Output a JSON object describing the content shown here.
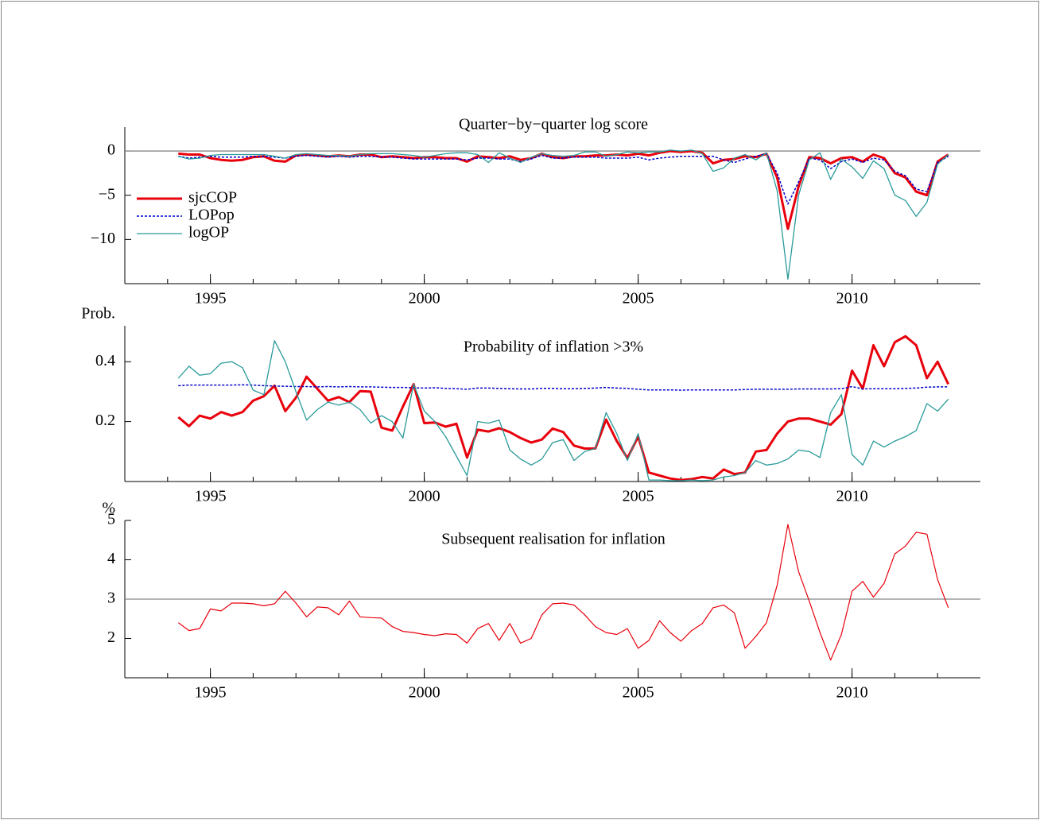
{
  "chart_data": [
    {
      "type": "line",
      "title": "Quarter−by−quarter log score",
      "xlim": [
        1993,
        2013
      ],
      "xticks": [
        1995,
        2000,
        2005,
        2010
      ],
      "xminorticks": [
        1994,
        1995,
        1996,
        1997,
        1998,
        1999,
        2000,
        2001,
        2002,
        2003,
        2004,
        2005,
        2006,
        2007,
        2008,
        2009,
        2010,
        2011,
        2012
      ],
      "ylim": [
        -15,
        2.7
      ],
      "yticks": [
        0,
        {
          "value": -5,
          "label": "−5"
        },
        {
          "value": -10,
          "label": "−10"
        }
      ],
      "hline": 0,
      "legend": "upper left",
      "x": [
        1994.25,
        1994.5,
        1994.75,
        1995,
        1995.25,
        1995.5,
        1995.75,
        1996,
        1996.25,
        1996.5,
        1996.75,
        1997,
        1997.25,
        1997.5,
        1997.75,
        1998,
        1998.25,
        1998.5,
        1998.75,
        1999,
        1999.25,
        1999.5,
        1999.75,
        2000,
        2000.25,
        2000.5,
        2000.75,
        2001,
        2001.25,
        2001.5,
        2001.75,
        2002,
        2002.25,
        2002.5,
        2002.75,
        2003,
        2003.25,
        2003.5,
        2003.75,
        2004,
        2004.25,
        2004.5,
        2004.75,
        2005,
        2005.25,
        2005.5,
        2005.75,
        2006,
        2006.25,
        2006.5,
        2006.75,
        2007,
        2007.25,
        2007.5,
        2007.75,
        2008,
        2008.25,
        2008.5,
        2008.75,
        2009,
        2009.25,
        2009.5,
        2009.75,
        2010,
        2010.25,
        2010.5,
        2010.75,
        2011,
        2011.25,
        2011.5,
        2011.75,
        2012,
        2012.25
      ],
      "series": [
        {
          "name": "sjcCOP",
          "color": "#e8000b",
          "width": 3,
          "dash": "none",
          "values": [
            -0.3,
            -0.4,
            -0.4,
            -0.8,
            -1.0,
            -1.1,
            -1.0,
            -0.7,
            -0.6,
            -1.1,
            -1.2,
            -0.5,
            -0.4,
            -0.5,
            -0.6,
            -0.5,
            -0.6,
            -0.4,
            -0.4,
            -0.7,
            -0.6,
            -0.7,
            -0.8,
            -0.7,
            -0.7,
            -0.8,
            -0.8,
            -1.2,
            -0.6,
            -0.7,
            -0.8,
            -0.6,
            -1.0,
            -0.8,
            -0.3,
            -0.7,
            -0.8,
            -0.6,
            -0.6,
            -0.5,
            -0.5,
            -0.4,
            -0.5,
            -0.3,
            -0.5,
            -0.2,
            0.0,
            -0.1,
            0.0,
            -0.2,
            -1.4,
            -1.0,
            -0.9,
            -0.6,
            -0.7,
            -0.3,
            -3.0,
            -8.8,
            -4.0,
            -0.7,
            -0.8,
            -1.4,
            -0.8,
            -0.7,
            -1.2,
            -0.4,
            -0.8,
            -2.5,
            -3.0,
            -4.6,
            -5.0,
            -1.2,
            -0.4
          ]
        },
        {
          "name": "LOPop",
          "color": "#0000cc",
          "width": 1.5,
          "dash": "3 2",
          "values": [
            -0.6,
            -0.8,
            -0.7,
            -0.6,
            -0.7,
            -0.7,
            -0.7,
            -0.6,
            -0.6,
            -0.7,
            -0.8,
            -0.6,
            -0.5,
            -0.6,
            -0.7,
            -0.6,
            -0.7,
            -0.6,
            -0.6,
            -0.7,
            -0.7,
            -0.8,
            -0.9,
            -0.9,
            -0.9,
            -0.9,
            -0.9,
            -1.0,
            -0.8,
            -0.8,
            -0.9,
            -0.9,
            -1.2,
            -0.9,
            -0.5,
            -0.8,
            -0.8,
            -0.7,
            -0.7,
            -0.7,
            -0.8,
            -0.8,
            -0.8,
            -0.7,
            -1.0,
            -0.8,
            -0.7,
            -0.6,
            -0.6,
            -0.6,
            -0.6,
            -1.0,
            -1.3,
            -0.9,
            -0.6,
            -0.3,
            -2.5,
            -6.0,
            -3.5,
            -0.8,
            -1.0,
            -2.0,
            -1.2,
            -0.9,
            -1.3,
            -0.8,
            -1.0,
            -2.3,
            -2.8,
            -4.3,
            -4.6,
            -1.3,
            -0.6
          ]
        },
        {
          "name": "logOP",
          "color": "#2a9a9a",
          "width": 1.3,
          "dash": "none",
          "values": [
            -0.6,
            -0.9,
            -0.8,
            -0.5,
            -0.4,
            -0.4,
            -0.4,
            -0.4,
            -0.4,
            -0.6,
            -0.8,
            -0.4,
            -0.3,
            -0.4,
            -0.5,
            -0.5,
            -0.6,
            -0.4,
            -0.3,
            -0.3,
            -0.3,
            -0.4,
            -0.5,
            -0.7,
            -0.5,
            -0.3,
            -0.2,
            -0.2,
            -0.4,
            -1.3,
            -0.2,
            -0.8,
            -1.3,
            -0.7,
            -0.3,
            -0.5,
            -0.6,
            -0.5,
            -0.1,
            -0.1,
            -0.6,
            -0.4,
            -0.1,
            -0.2,
            -0.1,
            -0.1,
            0.1,
            0.0,
            0.1,
            -0.3,
            -2.3,
            -1.9,
            -0.8,
            -0.4,
            -1.0,
            -0.2,
            -4.5,
            -14.5,
            -5.0,
            -1.0,
            -0.2,
            -3.2,
            -0.9,
            -1.8,
            -3.1,
            -1.1,
            -2.0,
            -5.0,
            -5.6,
            -7.4,
            -5.8,
            -1.5,
            -0.4
          ]
        }
      ]
    },
    {
      "type": "line",
      "title": "Probability of inflation >3%",
      "ylabel": "Prob.",
      "xlim": [
        1993,
        2013
      ],
      "xticks": [
        1995,
        2000,
        2005,
        2010
      ],
      "xminorticks": [
        1994,
        1995,
        1996,
        1997,
        1998,
        1999,
        2000,
        2001,
        2002,
        2003,
        2004,
        2005,
        2006,
        2007,
        2008,
        2009,
        2010,
        2011,
        2012
      ],
      "ylim": [
        0,
        0.52
      ],
      "yticks": [
        0.2,
        0.4
      ],
      "x": [
        1994.25,
        1994.5,
        1994.75,
        1995,
        1995.25,
        1995.5,
        1995.75,
        1996,
        1996.25,
        1996.5,
        1996.75,
        1997,
        1997.25,
        1997.5,
        1997.75,
        1998,
        1998.25,
        1998.5,
        1998.75,
        1999,
        1999.25,
        1999.5,
        1999.75,
        2000,
        2000.25,
        2000.5,
        2000.75,
        2001,
        2001.25,
        2001.5,
        2001.75,
        2002,
        2002.25,
        2002.5,
        2002.75,
        2003,
        2003.25,
        2003.5,
        2003.75,
        2004,
        2004.25,
        2004.5,
        2004.75,
        2005,
        2005.25,
        2005.5,
        2005.75,
        2006,
        2006.25,
        2006.5,
        2006.75,
        2007,
        2007.25,
        2007.5,
        2007.75,
        2008,
        2008.25,
        2008.5,
        2008.75,
        2009,
        2009.25,
        2009.5,
        2009.75,
        2010,
        2010.25,
        2010.5,
        2010.75,
        2011,
        2011.25,
        2011.5,
        2011.75,
        2012,
        2012.25
      ],
      "series": [
        {
          "name": "sjcCOP",
          "color": "#e8000b",
          "width": 3,
          "dash": "none",
          "values": [
            0.215,
            0.185,
            0.22,
            0.21,
            0.232,
            0.22,
            0.232,
            0.27,
            0.285,
            0.32,
            0.235,
            0.28,
            0.35,
            0.31,
            0.27,
            0.282,
            0.265,
            0.302,
            0.3,
            0.18,
            0.17,
            0.25,
            0.325,
            0.195,
            0.197,
            0.183,
            0.193,
            0.08,
            0.173,
            0.167,
            0.178,
            0.165,
            0.145,
            0.13,
            0.14,
            0.177,
            0.165,
            0.12,
            0.11,
            0.11,
            0.207,
            0.135,
            0.078,
            0.15,
            0.03,
            0.02,
            0.01,
            0.005,
            0.008,
            0.015,
            0.01,
            0.04,
            0.025,
            0.03,
            0.1,
            0.105,
            0.16,
            0.2,
            0.21,
            0.21,
            0.2,
            0.19,
            0.225,
            0.37,
            0.31,
            0.455,
            0.385,
            0.465,
            0.485,
            0.455,
            0.345,
            0.4,
            0.325
          ]
        },
        {
          "name": "LOPop",
          "color": "#0000cc",
          "width": 1.5,
          "dash": "3 2",
          "values": [
            0.32,
            0.322,
            0.322,
            0.322,
            0.322,
            0.322,
            0.323,
            0.322,
            0.32,
            0.319,
            0.318,
            0.317,
            0.317,
            0.316,
            0.317,
            0.316,
            0.317,
            0.316,
            0.316,
            0.315,
            0.314,
            0.314,
            0.313,
            0.312,
            0.313,
            0.311,
            0.31,
            0.308,
            0.312,
            0.312,
            0.311,
            0.31,
            0.309,
            0.309,
            0.311,
            0.311,
            0.31,
            0.31,
            0.311,
            0.312,
            0.314,
            0.312,
            0.311,
            0.308,
            0.306,
            0.306,
            0.306,
            0.305,
            0.306,
            0.306,
            0.306,
            0.306,
            0.306,
            0.307,
            0.308,
            0.308,
            0.308,
            0.308,
            0.309,
            0.309,
            0.309,
            0.309,
            0.31,
            0.317,
            0.309,
            0.31,
            0.31,
            0.31,
            0.311,
            0.312,
            0.315,
            0.316,
            0.316
          ]
        },
        {
          "name": "logOP",
          "color": "#2a9a9a",
          "width": 1.3,
          "dash": "none",
          "values": [
            0.345,
            0.385,
            0.355,
            0.36,
            0.395,
            0.4,
            0.38,
            0.305,
            0.29,
            0.47,
            0.4,
            0.3,
            0.205,
            0.24,
            0.265,
            0.255,
            0.265,
            0.24,
            0.195,
            0.22,
            0.2,
            0.145,
            0.325,
            0.235,
            0.2,
            0.15,
            0.085,
            0.02,
            0.2,
            0.195,
            0.205,
            0.105,
            0.075,
            0.055,
            0.075,
            0.13,
            0.14,
            0.07,
            0.1,
            0.11,
            0.23,
            0.16,
            0.07,
            0.16,
            0.005,
            0.005,
            0.003,
            0.003,
            0.005,
            0.003,
            0.005,
            0.015,
            0.02,
            0.03,
            0.07,
            0.055,
            0.06,
            0.075,
            0.105,
            0.1,
            0.08,
            0.23,
            0.29,
            0.09,
            0.055,
            0.135,
            0.115,
            0.135,
            0.15,
            0.17,
            0.26,
            0.235,
            0.275
          ]
        }
      ]
    },
    {
      "type": "line",
      "title": "Subsequent realisation for inflation",
      "ylabel": "%",
      "xlim": [
        1993,
        2013
      ],
      "xticks": [
        1995,
        2000,
        2005,
        2010
      ],
      "xminorticks": [
        1994,
        1995,
        1996,
        1997,
        1998,
        1999,
        2000,
        2001,
        2002,
        2003,
        2004,
        2005,
        2006,
        2007,
        2008,
        2009,
        2010,
        2011,
        2012
      ],
      "ylim": [
        1,
        5
      ],
      "yticks": [
        2,
        3,
        4,
        5
      ],
      "hline": 3,
      "x": [
        1994.25,
        1994.5,
        1994.75,
        1995,
        1995.25,
        1995.5,
        1995.75,
        1996,
        1996.25,
        1996.5,
        1996.75,
        1997,
        1997.25,
        1997.5,
        1997.75,
        1998,
        1998.25,
        1998.5,
        1998.75,
        1999,
        1999.25,
        1999.5,
        1999.75,
        2000,
        2000.25,
        2000.5,
        2000.75,
        2001,
        2001.25,
        2001.5,
        2001.75,
        2002,
        2002.25,
        2002.5,
        2002.75,
        2003,
        2003.25,
        2003.5,
        2003.75,
        2004,
        2004.25,
        2004.5,
        2004.75,
        2005,
        2005.25,
        2005.5,
        2005.75,
        2006,
        2006.25,
        2006.5,
        2006.75,
        2007,
        2007.25,
        2007.5,
        2007.75,
        2008,
        2008.25,
        2008.5,
        2008.75,
        2009,
        2009.25,
        2009.5,
        2009.75,
        2010,
        2010.25,
        2010.5,
        2010.75,
        2011,
        2011.25,
        2011.5,
        2011.75,
        2012,
        2012.25
      ],
      "series": [
        {
          "color": "#e8000b",
          "width": 1.2,
          "dash": "none",
          "values": [
            2.4,
            2.2,
            2.25,
            2.75,
            2.7,
            2.9,
            2.9,
            2.88,
            2.83,
            2.88,
            3.2,
            2.9,
            2.55,
            2.8,
            2.78,
            2.6,
            2.95,
            2.55,
            2.53,
            2.52,
            2.3,
            2.18,
            2.15,
            2.1,
            2.07,
            2.12,
            2.1,
            1.88,
            2.25,
            2.38,
            1.95,
            2.38,
            1.88,
            2.0,
            2.6,
            2.88,
            2.9,
            2.85,
            2.6,
            2.3,
            2.15,
            2.1,
            2.25,
            1.75,
            1.95,
            2.45,
            2.15,
            1.93,
            2.2,
            2.38,
            2.78,
            2.85,
            2.65,
            1.75,
            2.05,
            2.4,
            3.35,
            4.9,
            3.7,
            2.95,
            2.15,
            1.45,
            2.1,
            3.2,
            3.45,
            3.05,
            3.4,
            4.15,
            4.35,
            4.7,
            4.65,
            3.5,
            2.78
          ]
        }
      ]
    }
  ]
}
